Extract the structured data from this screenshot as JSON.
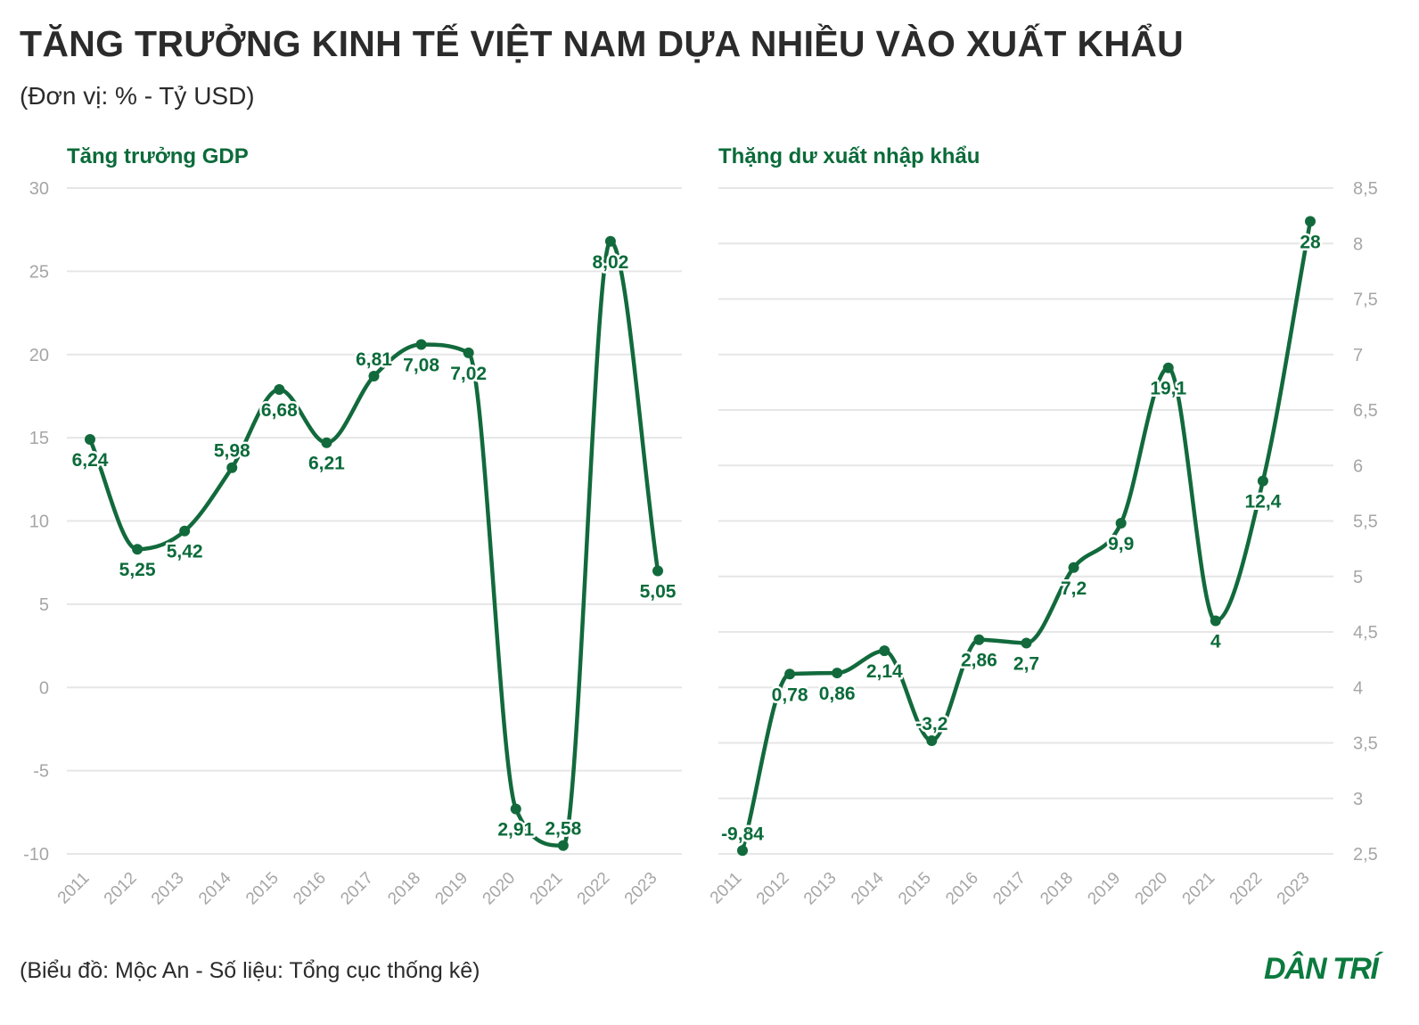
{
  "header": {
    "title": "TĂNG TRƯỞNG KINH TẾ VIỆT NAM DỰA NHIỀU VÀO XUẤT KHẨU",
    "subtitle": "(Đơn vị: % - Tỷ USD)"
  },
  "footer": {
    "source": "(Biểu đồ: Mộc An - Số liệu: Tổng cục thống kê)",
    "logo": "DÂN TRÍ"
  },
  "colors": {
    "line": "#126a3c",
    "label": "#0b6b3a",
    "grid": "#e6e6e6",
    "tick": "#a6a6a6"
  },
  "chart_data": [
    {
      "type": "line",
      "title": "Tăng trưởng GDP",
      "categories": [
        "2011",
        "2012",
        "2013",
        "2014",
        "2015",
        "2016",
        "2017",
        "2018",
        "2019",
        "2020",
        "2021",
        "2022",
        "2023"
      ],
      "series": [
        {
          "name": "Tăng trưởng GDP",
          "values": [
            14.9,
            8.3,
            9.4,
            13.2,
            17.9,
            14.7,
            18.7,
            20.6,
            20.1,
            -7.3,
            -9.5,
            26.8,
            7.0
          ],
          "labels": [
            "6,24",
            "5,25",
            "5,42",
            "5,98",
            "6,68",
            "6,21",
            "6,81",
            "7,08",
            "7,02",
            "2,91",
            "2,58",
            "8,02",
            "5,05"
          ],
          "label_position": [
            "below",
            "below",
            "below",
            "above",
            "below",
            "below",
            "above",
            "below",
            "below",
            "below",
            "above",
            "below",
            "below"
          ]
        }
      ],
      "yaxis": "left",
      "yticks": [
        "30",
        "25",
        "20",
        "15",
        "10",
        "5",
        "0",
        "-5",
        "-10"
      ],
      "ylim": [
        -10,
        30
      ],
      "grid": true
    },
    {
      "type": "line",
      "title": "Thặng dư xuất nhập khẩu",
      "categories": [
        "2011",
        "2012",
        "2013",
        "2014",
        "2015",
        "2016",
        "2017",
        "2018",
        "2019",
        "2020",
        "2021",
        "2022",
        "2023"
      ],
      "series": [
        {
          "name": "Thặng dư xuất nhập khẩu",
          "values": [
            2.53,
            4.12,
            4.13,
            4.33,
            3.52,
            4.43,
            4.4,
            5.08,
            5.48,
            6.88,
            4.6,
            5.86,
            8.2
          ],
          "labels": [
            "-9,84",
            "0,78",
            "0,86",
            "2,14",
            "-3,2",
            "2,86",
            "2,7",
            "7,2",
            "9,9",
            "19,1",
            "4",
            "12,4",
            "28"
          ],
          "label_position": [
            "above",
            "below",
            "below",
            "below",
            "above",
            "below",
            "below",
            "below",
            "below",
            "below",
            "below",
            "below",
            "below"
          ]
        }
      ],
      "yaxis": "right",
      "yticks": [
        "8,5",
        "8",
        "7,5",
        "7",
        "6,5",
        "6",
        "5,5",
        "5",
        "4,5",
        "4",
        "3,5",
        "3",
        "2,5"
      ],
      "ylim": [
        2.5,
        8.5
      ],
      "grid": true
    }
  ]
}
